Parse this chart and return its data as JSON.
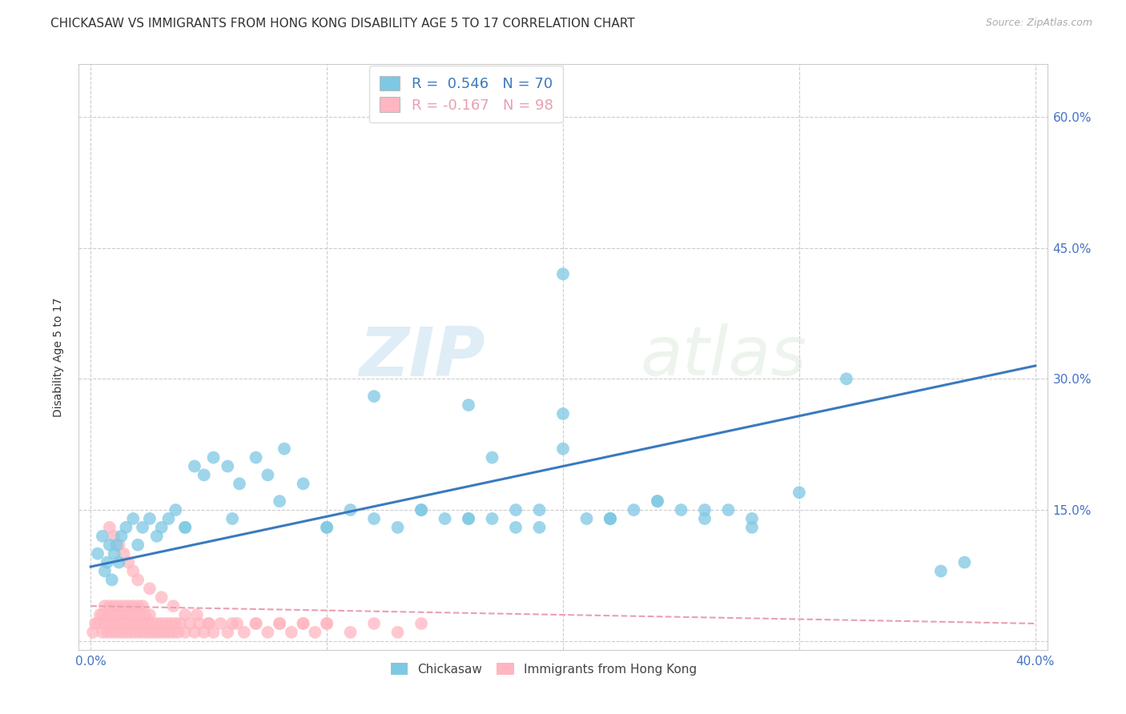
{
  "title": "CHICKASAW VS IMMIGRANTS FROM HONG KONG DISABILITY AGE 5 TO 17 CORRELATION CHART",
  "source": "Source: ZipAtlas.com",
  "xlabel_ticks": [
    "0.0%",
    "",
    "",
    "",
    "40.0%"
  ],
  "xlabel_vals": [
    0.0,
    0.1,
    0.2,
    0.3,
    0.4
  ],
  "ylabel": "Disability Age 5 to 17",
  "ylabel_ticks": [
    "60.0%",
    "45.0%",
    "30.0%",
    "15.0%",
    "0.0%"
  ],
  "ylabel_vals": [
    0.6,
    0.45,
    0.3,
    0.15,
    0.0
  ],
  "ylabel_ticks_right": [
    "60.0%",
    "45.0%",
    "30.0%",
    "15.0%",
    ""
  ],
  "xlim": [
    -0.005,
    0.405
  ],
  "ylim": [
    -0.01,
    0.66
  ],
  "chickasaw_R": 0.546,
  "chickasaw_N": 70,
  "hk_R": -0.167,
  "hk_N": 98,
  "chickasaw_color": "#7ec8e3",
  "hk_color": "#ffb6c1",
  "chickasaw_line_color": "#3a7abf",
  "hk_line_color": "#e8a0b0",
  "background_color": "#ffffff",
  "grid_color": "#cccccc",
  "watermark_zip": "ZIP",
  "watermark_atlas": "atlas",
  "title_fontsize": 11,
  "axis_label_fontsize": 10,
  "tick_fontsize": 11,
  "source_fontsize": 9,
  "chickasaw_x": [
    0.003,
    0.005,
    0.006,
    0.007,
    0.008,
    0.009,
    0.01,
    0.011,
    0.012,
    0.013,
    0.015,
    0.018,
    0.02,
    0.022,
    0.025,
    0.028,
    0.03,
    0.033,
    0.036,
    0.04,
    0.044,
    0.048,
    0.052,
    0.058,
    0.063,
    0.07,
    0.075,
    0.082,
    0.09,
    0.1,
    0.11,
    0.12,
    0.13,
    0.14,
    0.15,
    0.16,
    0.17,
    0.18,
    0.19,
    0.2,
    0.21,
    0.22,
    0.23,
    0.24,
    0.25,
    0.26,
    0.27,
    0.28,
    0.3,
    0.32,
    0.04,
    0.06,
    0.08,
    0.1,
    0.12,
    0.14,
    0.16,
    0.18,
    0.2,
    0.22,
    0.24,
    0.26,
    0.28,
    0.16,
    0.2,
    0.22,
    0.36,
    0.37,
    0.17,
    0.19
  ],
  "chickasaw_y": [
    0.1,
    0.12,
    0.08,
    0.09,
    0.11,
    0.07,
    0.1,
    0.11,
    0.09,
    0.12,
    0.13,
    0.14,
    0.11,
    0.13,
    0.14,
    0.12,
    0.13,
    0.14,
    0.15,
    0.13,
    0.2,
    0.19,
    0.21,
    0.2,
    0.18,
    0.21,
    0.19,
    0.22,
    0.18,
    0.13,
    0.15,
    0.14,
    0.13,
    0.15,
    0.14,
    0.14,
    0.21,
    0.13,
    0.15,
    0.42,
    0.14,
    0.14,
    0.15,
    0.16,
    0.15,
    0.14,
    0.15,
    0.14,
    0.17,
    0.3,
    0.13,
    0.14,
    0.16,
    0.13,
    0.28,
    0.15,
    0.14,
    0.15,
    0.22,
    0.14,
    0.16,
    0.15,
    0.13,
    0.27,
    0.26,
    0.14,
    0.08,
    0.09,
    0.14,
    0.13
  ],
  "hk_x": [
    0.001,
    0.002,
    0.003,
    0.004,
    0.005,
    0.005,
    0.006,
    0.006,
    0.007,
    0.007,
    0.008,
    0.008,
    0.009,
    0.009,
    0.01,
    0.01,
    0.011,
    0.011,
    0.012,
    0.012,
    0.013,
    0.013,
    0.014,
    0.014,
    0.015,
    0.015,
    0.016,
    0.016,
    0.017,
    0.017,
    0.018,
    0.018,
    0.019,
    0.019,
    0.02,
    0.02,
    0.021,
    0.021,
    0.022,
    0.022,
    0.023,
    0.023,
    0.024,
    0.025,
    0.025,
    0.026,
    0.027,
    0.028,
    0.029,
    0.03,
    0.031,
    0.032,
    0.033,
    0.034,
    0.035,
    0.036,
    0.037,
    0.038,
    0.04,
    0.042,
    0.044,
    0.046,
    0.048,
    0.05,
    0.052,
    0.055,
    0.058,
    0.062,
    0.065,
    0.07,
    0.075,
    0.08,
    0.085,
    0.09,
    0.095,
    0.1,
    0.11,
    0.12,
    0.13,
    0.14,
    0.008,
    0.01,
    0.012,
    0.014,
    0.016,
    0.018,
    0.02,
    0.025,
    0.03,
    0.035,
    0.04,
    0.045,
    0.05,
    0.06,
    0.07,
    0.08,
    0.09,
    0.1
  ],
  "hk_y": [
    0.01,
    0.02,
    0.02,
    0.03,
    0.01,
    0.03,
    0.02,
    0.04,
    0.01,
    0.03,
    0.02,
    0.04,
    0.01,
    0.03,
    0.02,
    0.04,
    0.01,
    0.03,
    0.02,
    0.04,
    0.01,
    0.03,
    0.02,
    0.04,
    0.01,
    0.03,
    0.02,
    0.04,
    0.01,
    0.03,
    0.02,
    0.04,
    0.01,
    0.03,
    0.02,
    0.04,
    0.01,
    0.03,
    0.02,
    0.04,
    0.01,
    0.03,
    0.02,
    0.01,
    0.03,
    0.02,
    0.01,
    0.02,
    0.01,
    0.02,
    0.01,
    0.02,
    0.01,
    0.02,
    0.01,
    0.02,
    0.01,
    0.02,
    0.01,
    0.02,
    0.01,
    0.02,
    0.01,
    0.02,
    0.01,
    0.02,
    0.01,
    0.02,
    0.01,
    0.02,
    0.01,
    0.02,
    0.01,
    0.02,
    0.01,
    0.02,
    0.01,
    0.02,
    0.01,
    0.02,
    0.13,
    0.12,
    0.11,
    0.1,
    0.09,
    0.08,
    0.07,
    0.06,
    0.05,
    0.04,
    0.03,
    0.03,
    0.02,
    0.02,
    0.02,
    0.02,
    0.02,
    0.02
  ],
  "chickasaw_line_x": [
    0.0,
    0.4
  ],
  "chickasaw_line_y": [
    0.085,
    0.315
  ],
  "hk_line_x": [
    0.0,
    0.4
  ],
  "hk_line_y": [
    0.04,
    0.02
  ],
  "legend_label_1": "R =  0.546   N = 70",
  "legend_label_2": "R = -0.167   N = 98",
  "bottom_label_1": "Chickasaw",
  "bottom_label_2": "Immigrants from Hong Kong"
}
